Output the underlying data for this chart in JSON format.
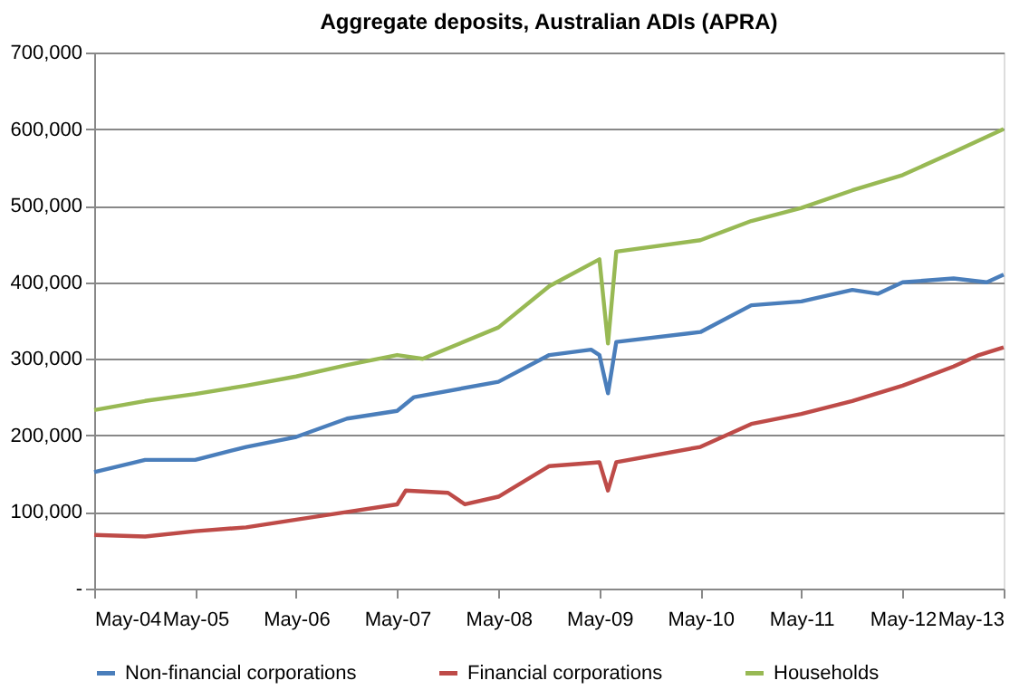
{
  "chart_data": {
    "type": "line",
    "title": "Aggregate deposits, Australian ADIs (APRA)",
    "xlim": [
      "2004-05",
      "2013-05"
    ],
    "xticks": [
      {
        "value": "2004-05",
        "label": "May-04"
      },
      {
        "value": "2005-05",
        "label": "May-05"
      },
      {
        "value": "2006-05",
        "label": "May-06"
      },
      {
        "value": "2007-05",
        "label": "May-07"
      },
      {
        "value": "2008-05",
        "label": "May-08"
      },
      {
        "value": "2009-05",
        "label": "May-09"
      },
      {
        "value": "2010-05",
        "label": "May-10"
      },
      {
        "value": "2011-05",
        "label": "May-11"
      },
      {
        "value": "2012-05",
        "label": "May-12"
      },
      {
        "value": "2013-05",
        "label": "May-13"
      }
    ],
    "ylim": [
      0,
      700000
    ],
    "yticks": [
      {
        "value": 0,
        "label": "-"
      },
      {
        "value": 100000,
        "label": "100,000"
      },
      {
        "value": 200000,
        "label": "200,000"
      },
      {
        "value": 300000,
        "label": "300,000"
      },
      {
        "value": 400000,
        "label": "400,000"
      },
      {
        "value": 500000,
        "label": "500,000"
      },
      {
        "value": 600000,
        "label": "600,000"
      },
      {
        "value": 700000,
        "label": "700,000"
      }
    ],
    "grid": "y",
    "legend": "bottom",
    "marker": "none",
    "line_style": "solid",
    "series": [
      {
        "name": "Non-financial corporations",
        "color": "#4a7ebb",
        "x": [
          "2004-05",
          "2004-11",
          "2005-05",
          "2005-11",
          "2006-05",
          "2006-11",
          "2007-05",
          "2007-07",
          "2008-05",
          "2008-11",
          "2009-04",
          "2009-05",
          "2009-06",
          "2009-07",
          "2010-05",
          "2010-11",
          "2011-05",
          "2011-11",
          "2012-02",
          "2012-05",
          "2012-11",
          "2013-03",
          "2013-05"
        ],
        "values": [
          152000,
          168000,
          168000,
          185000,
          198000,
          222000,
          232000,
          250000,
          270000,
          305000,
          312000,
          305000,
          255000,
          322000,
          335000,
          370000,
          375000,
          390000,
          385000,
          400000,
          405000,
          400000,
          410000
        ]
      },
      {
        "name": "Financial corporations",
        "color": "#be4b48",
        "x": [
          "2004-05",
          "2004-11",
          "2005-05",
          "2005-11",
          "2006-05",
          "2006-11",
          "2007-05",
          "2007-06",
          "2007-11",
          "2008-01",
          "2008-05",
          "2008-08",
          "2008-11",
          "2009-05",
          "2009-06",
          "2009-07",
          "2010-05",
          "2010-11",
          "2011-05",
          "2011-11",
          "2012-05",
          "2012-11",
          "2013-02",
          "2013-05"
        ],
        "values": [
          70000,
          68000,
          75000,
          80000,
          90000,
          100000,
          110000,
          128000,
          125000,
          110000,
          120000,
          140000,
          160000,
          165000,
          128000,
          165000,
          185000,
          215000,
          228000,
          245000,
          265000,
          290000,
          305000,
          315000
        ]
      },
      {
        "name": "Households",
        "color": "#98b954",
        "x": [
          "2004-05",
          "2004-11",
          "2005-05",
          "2005-11",
          "2006-05",
          "2006-11",
          "2007-05",
          "2007-08",
          "2008-05",
          "2008-11",
          "2009-05",
          "2009-06",
          "2009-07",
          "2010-05",
          "2010-11",
          "2011-05",
          "2011-11",
          "2012-05",
          "2012-11",
          "2013-05"
        ],
        "values": [
          233000,
          245000,
          254000,
          265000,
          277000,
          292000,
          305000,
          300000,
          341000,
          395000,
          430000,
          320000,
          440000,
          455000,
          480000,
          497000,
          520000,
          540000,
          570000,
          600000
        ]
      }
    ]
  }
}
